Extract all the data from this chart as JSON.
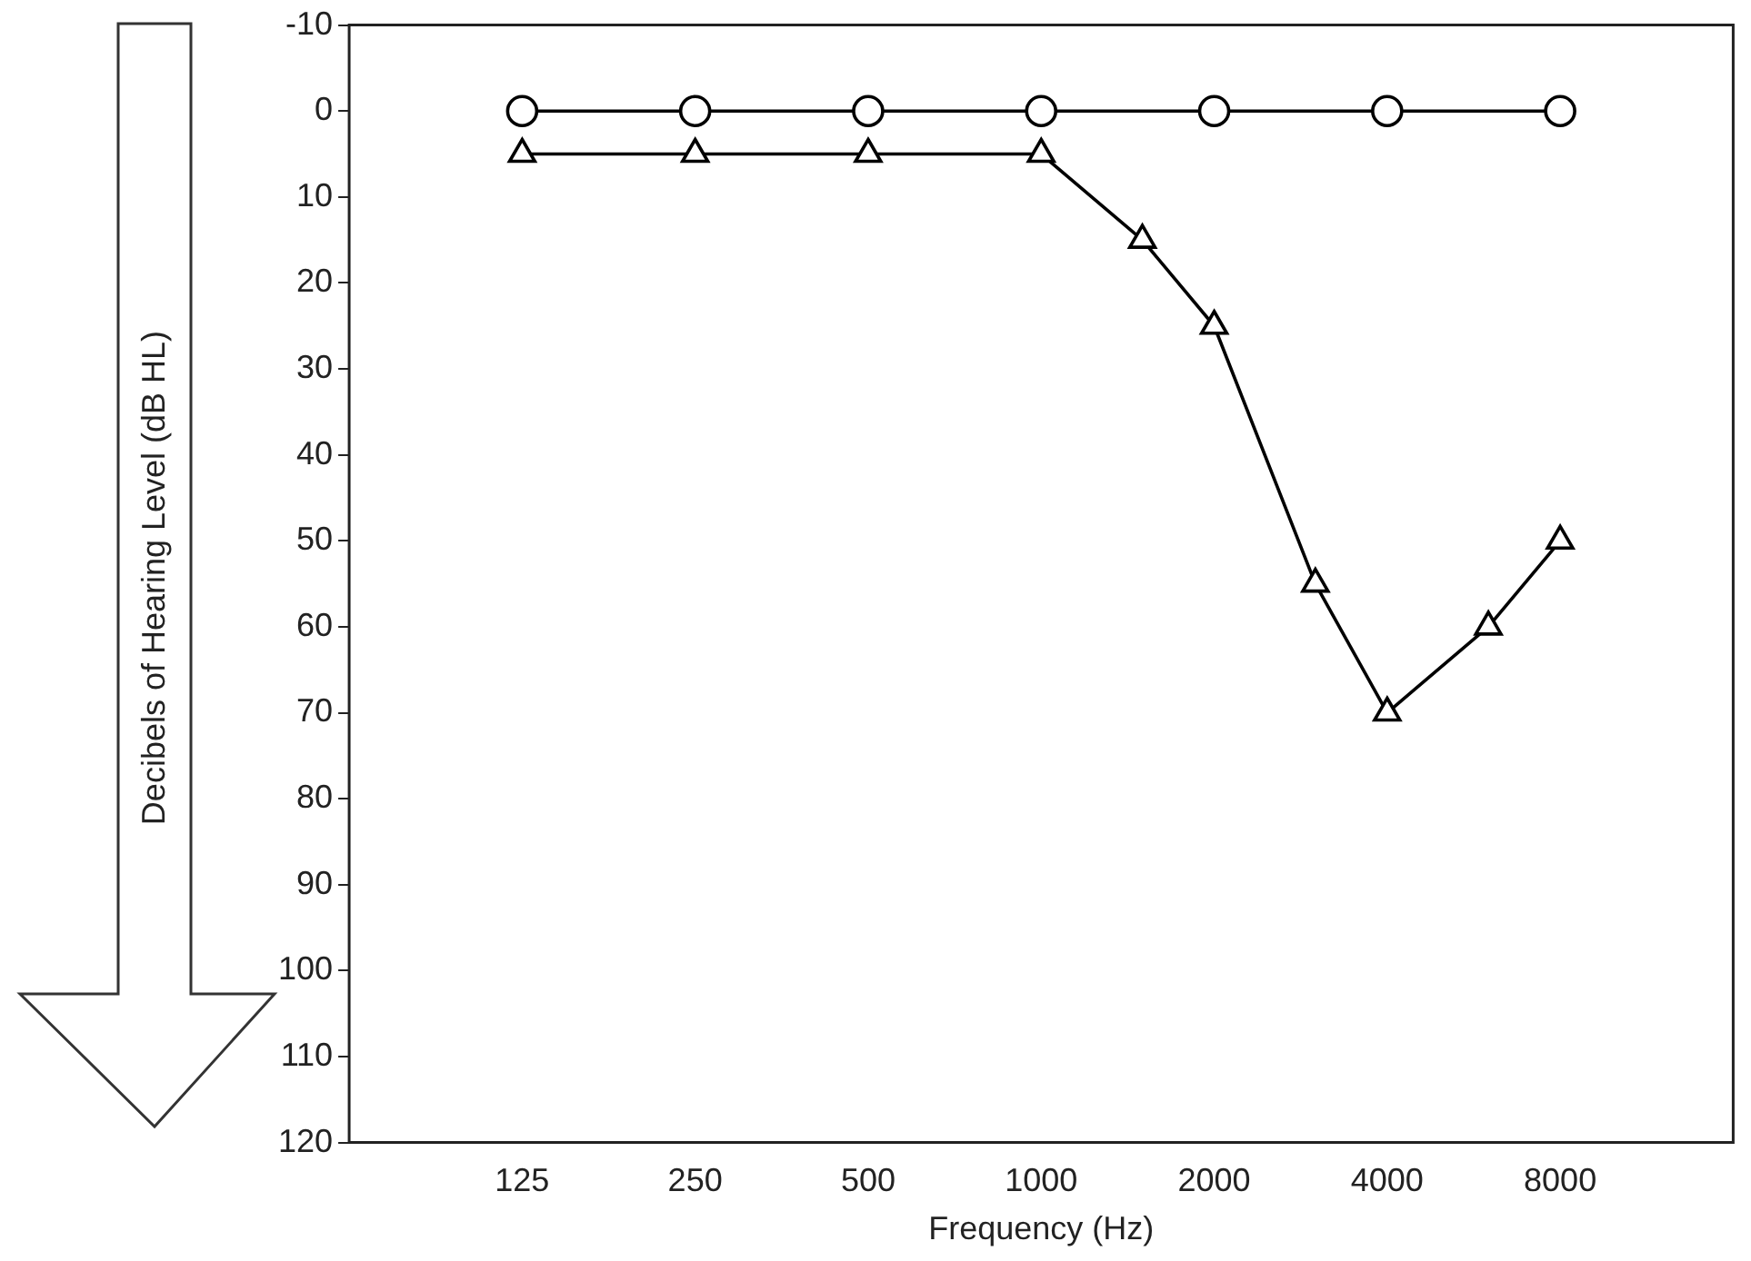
{
  "chart_data": {
    "type": "line",
    "xlabel": "Frequency (Hz)",
    "ylabel": "Decibels of Hearing Level (dB HL)",
    "log": "x",
    "xlim": [
      62.5,
      16000
    ],
    "xticks": [
      125,
      250,
      500,
      1000,
      2000,
      4000,
      8000
    ],
    "ylim": [
      120,
      -10
    ],
    "yticks": [
      -10,
      0,
      10,
      20,
      30,
      40,
      50,
      60,
      70,
      80,
      90,
      100,
      110,
      120
    ],
    "grid": false,
    "legend": false,
    "line_style": "solid",
    "series": [
      {
        "color": "#000000",
        "marker": "circle",
        "x": [
          125,
          250,
          500,
          1000,
          2000,
          4000,
          8000
        ],
        "values": [
          0,
          0,
          0,
          0,
          0,
          0,
          0
        ]
      },
      {
        "color": "#000000",
        "marker": "triangle",
        "x": [
          125,
          250,
          500,
          1000,
          1500,
          2000,
          3000,
          4000,
          6000,
          8000
        ],
        "values": [
          5,
          5,
          5,
          5,
          15,
          25,
          55,
          70,
          60,
          50
        ]
      }
    ]
  }
}
